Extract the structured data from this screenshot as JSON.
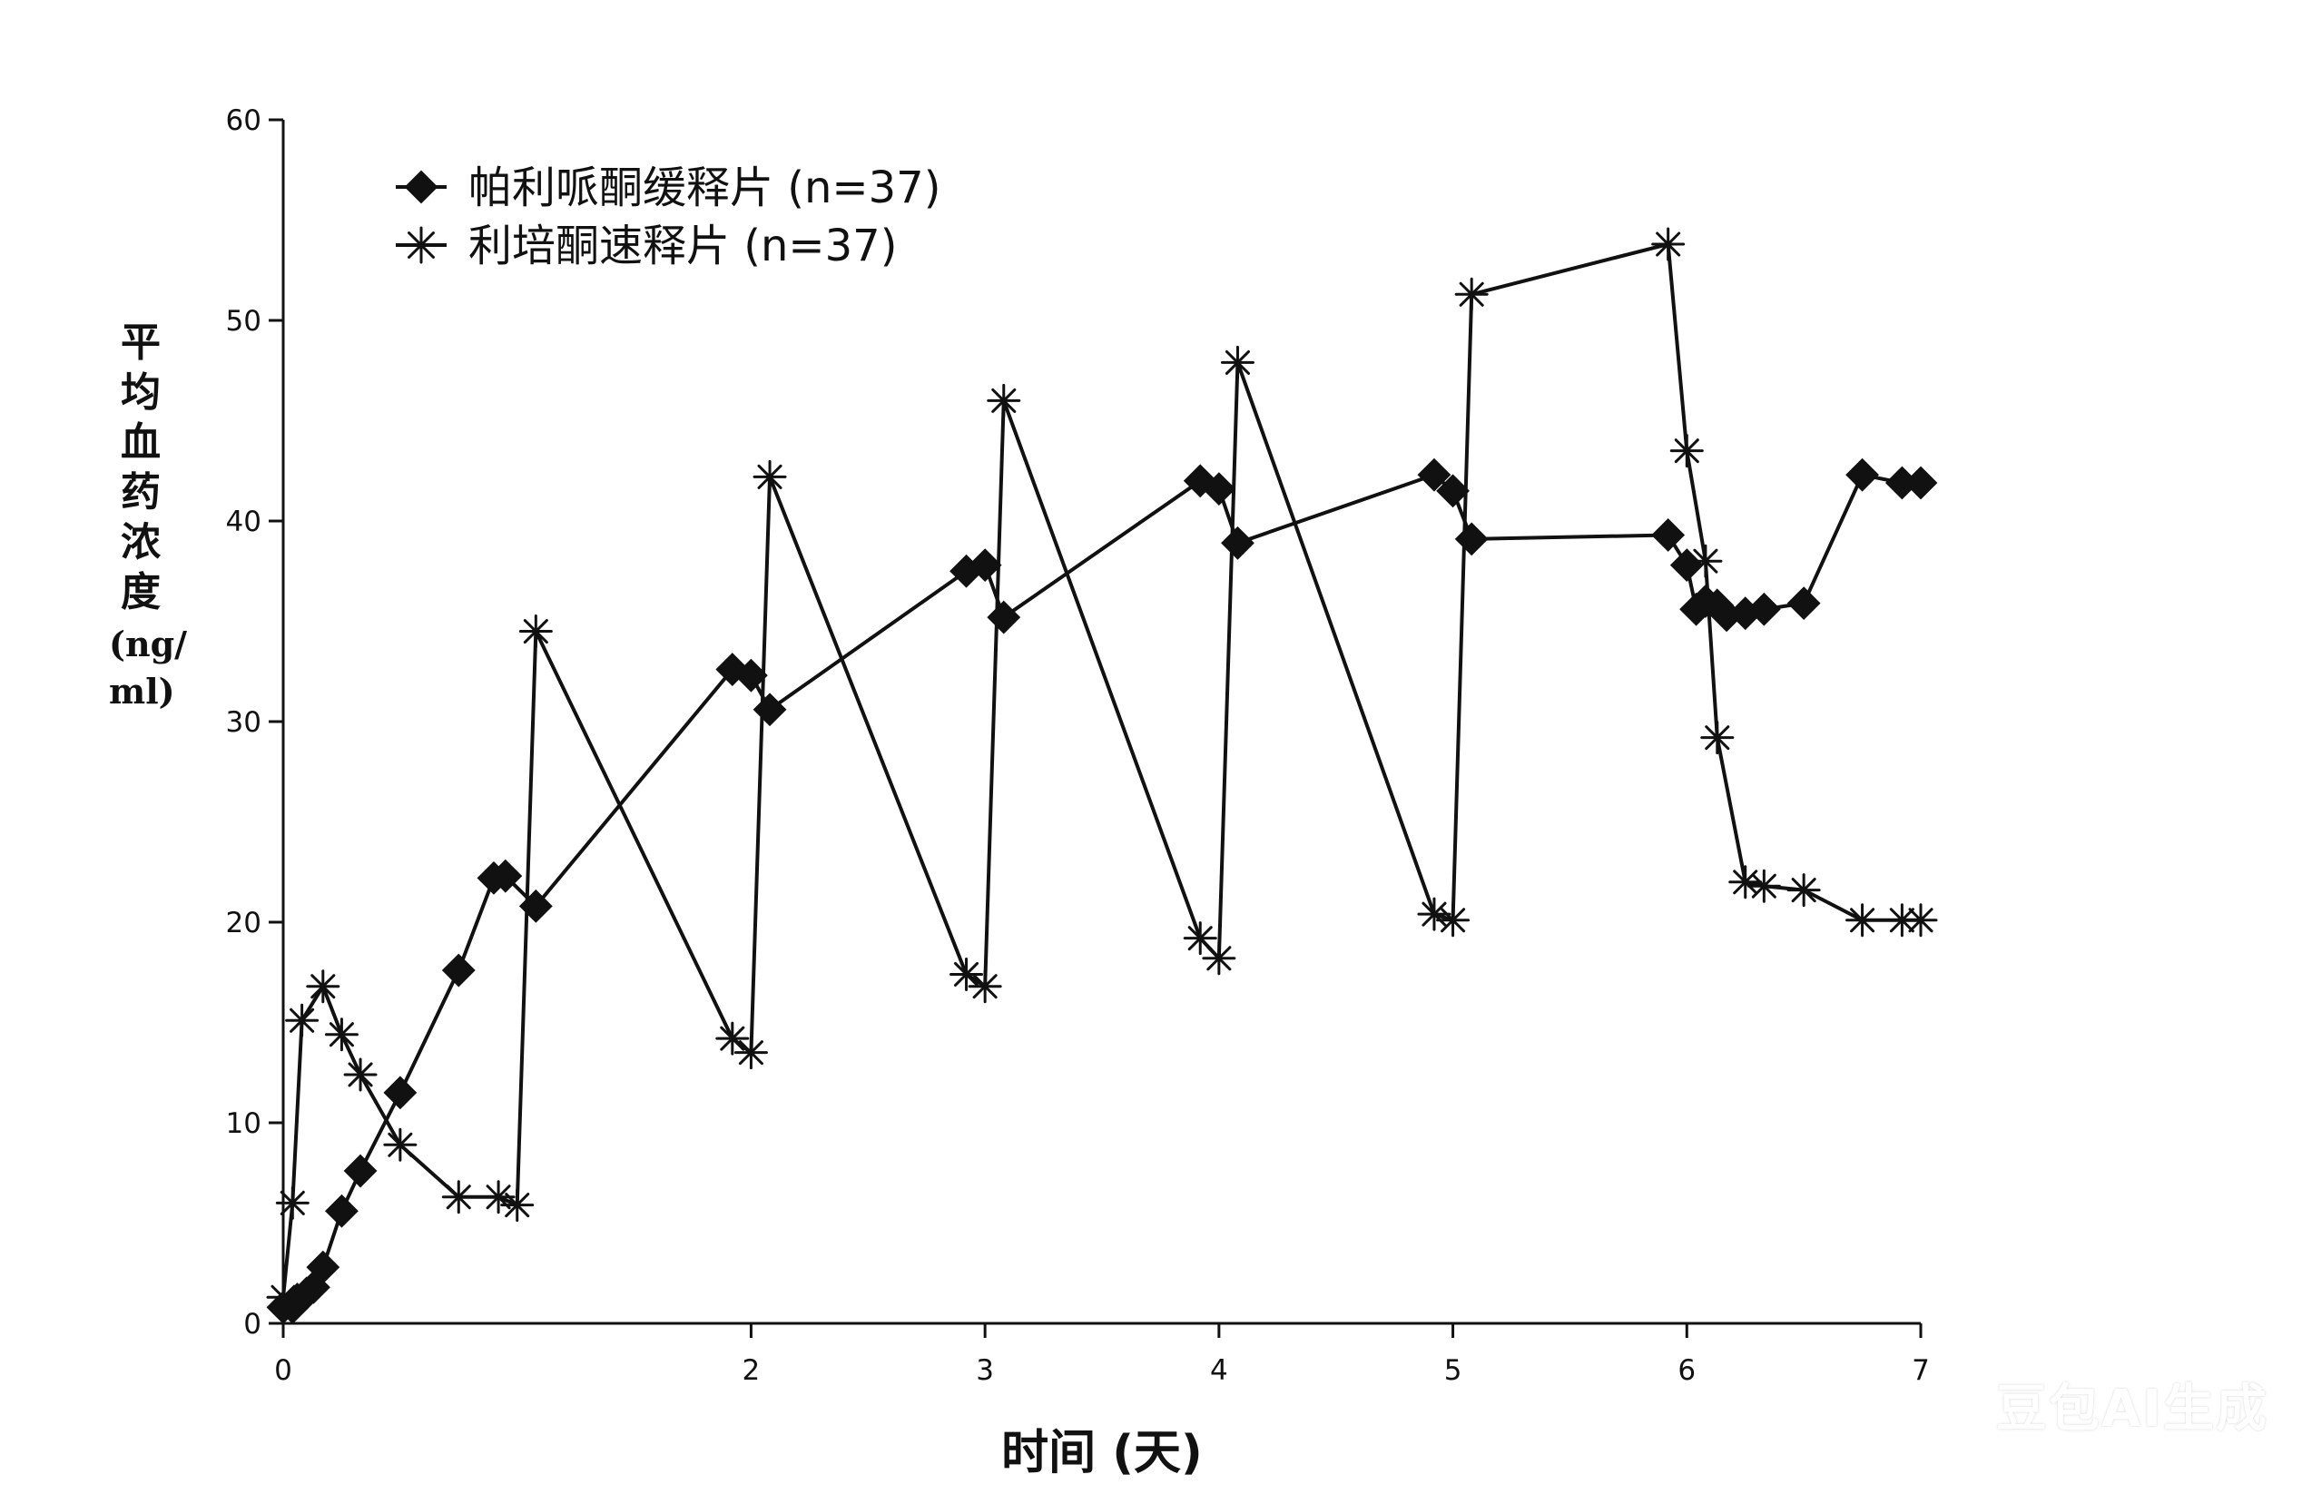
{
  "chart_data": {
    "type": "line",
    "xlabel": "时间 (天)",
    "ylabel": "平均血药浓度",
    "ylabel_unit": "(ng/ ml)",
    "x_ticks": [
      0,
      2,
      3,
      4,
      5,
      6,
      7
    ],
    "y_ticks": [
      0,
      10,
      20,
      30,
      40,
      50,
      60
    ],
    "xlim": [
      0,
      7
    ],
    "ylim": [
      0,
      60
    ],
    "grid": false,
    "legend_position": "top-left",
    "series": [
      {
        "name": "帕利哌酮缓释片 (n=37)",
        "marker": "diamond",
        "color": "#111111",
        "x": [
          0.0,
          0.04,
          0.06,
          0.1,
          0.13,
          0.17,
          0.25,
          0.33,
          0.5,
          0.75,
          0.9,
          0.95,
          1.08,
          1.92,
          2.0,
          2.08,
          2.92,
          3.0,
          3.08,
          3.92,
          4.0,
          4.08,
          4.92,
          5.0,
          5.08,
          5.92,
          6.0,
          6.04,
          6.08,
          6.13,
          6.17,
          6.25,
          6.33,
          6.5,
          6.75,
          6.92,
          7.0
        ],
        "y": [
          0.8,
          0.8,
          1.2,
          1.5,
          1.8,
          2.8,
          5.6,
          7.6,
          11.5,
          17.6,
          22.2,
          22.3,
          20.8,
          32.6,
          32.3,
          30.6,
          37.5,
          37.8,
          35.2,
          42.0,
          41.6,
          38.9,
          42.3,
          41.5,
          39.1,
          39.3,
          37.8,
          35.6,
          36.0,
          35.8,
          35.3,
          35.4,
          35.6,
          35.9,
          42.3,
          41.9,
          41.9
        ]
      },
      {
        "name": "利培酮速释片 (n=37)",
        "marker": "asterisk",
        "color": "#111111",
        "x": [
          0.0,
          0.04,
          0.08,
          0.17,
          0.25,
          0.33,
          0.5,
          0.75,
          0.92,
          1.0,
          1.08,
          1.92,
          2.0,
          2.08,
          2.92,
          3.0,
          3.08,
          3.92,
          4.0,
          4.08,
          4.92,
          5.0,
          5.08,
          5.92,
          6.0,
          6.08,
          6.13,
          6.25,
          6.33,
          6.5,
          6.75,
          6.92,
          7.0
        ],
        "y": [
          1.3,
          6.0,
          15.1,
          16.8,
          14.4,
          12.4,
          8.9,
          6.3,
          6.3,
          5.9,
          34.5,
          14.2,
          13.5,
          42.2,
          17.4,
          16.8,
          46.0,
          19.2,
          18.2,
          47.9,
          20.4,
          20.1,
          51.3,
          53.8,
          43.5,
          38.0,
          29.2,
          22.0,
          21.8,
          21.6,
          20.1,
          20.1,
          20.1
        ]
      }
    ]
  },
  "watermark": "豆包AI生成"
}
